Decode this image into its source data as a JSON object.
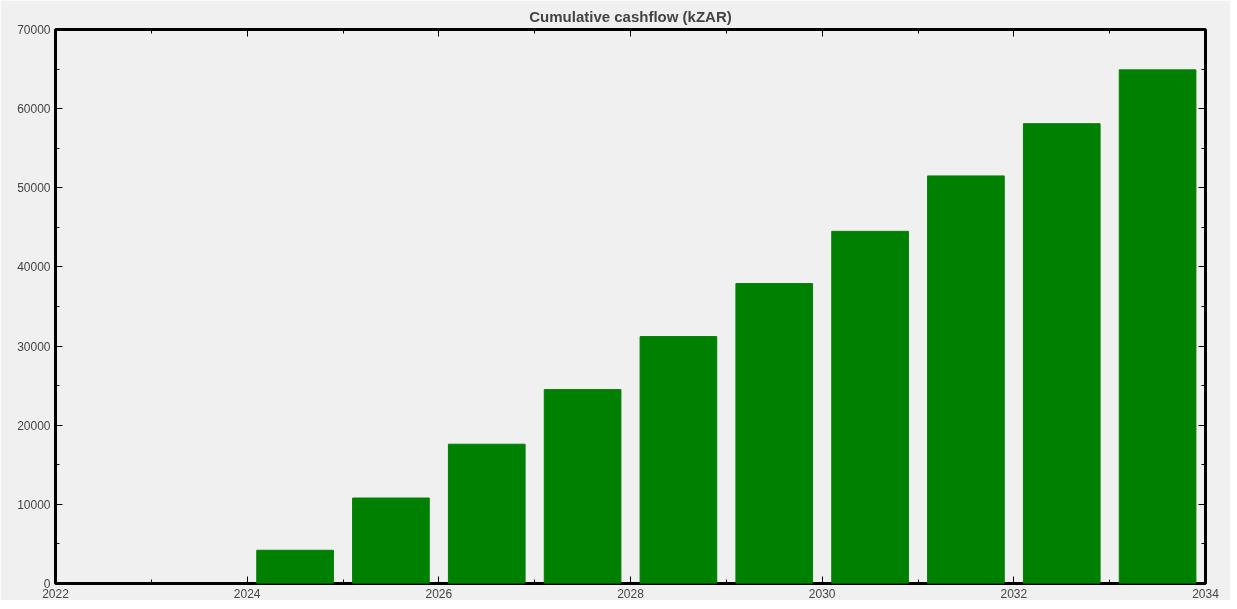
{
  "chart_data": {
    "type": "bar",
    "title": "Cumulative cashflow (kZAR)",
    "x": [
      2024.5,
      2025.5,
      2026.5,
      2027.5,
      2028.5,
      2029.5,
      2030.5,
      2031.5,
      2032.5,
      2033.5
    ],
    "values": [
      4200,
      10800,
      17600,
      24500,
      31200,
      37900,
      44500,
      51500,
      58100,
      64900
    ],
    "color": "#008000",
    "xlim": [
      2022,
      2034
    ],
    "xticks": [
      2022,
      2024,
      2026,
      2028,
      2030,
      2032,
      2034
    ],
    "ylim": [
      0,
      70000
    ],
    "yticks": [
      0,
      10000,
      20000,
      30000,
      40000,
      50000,
      60000,
      70000
    ],
    "grid": false
  }
}
